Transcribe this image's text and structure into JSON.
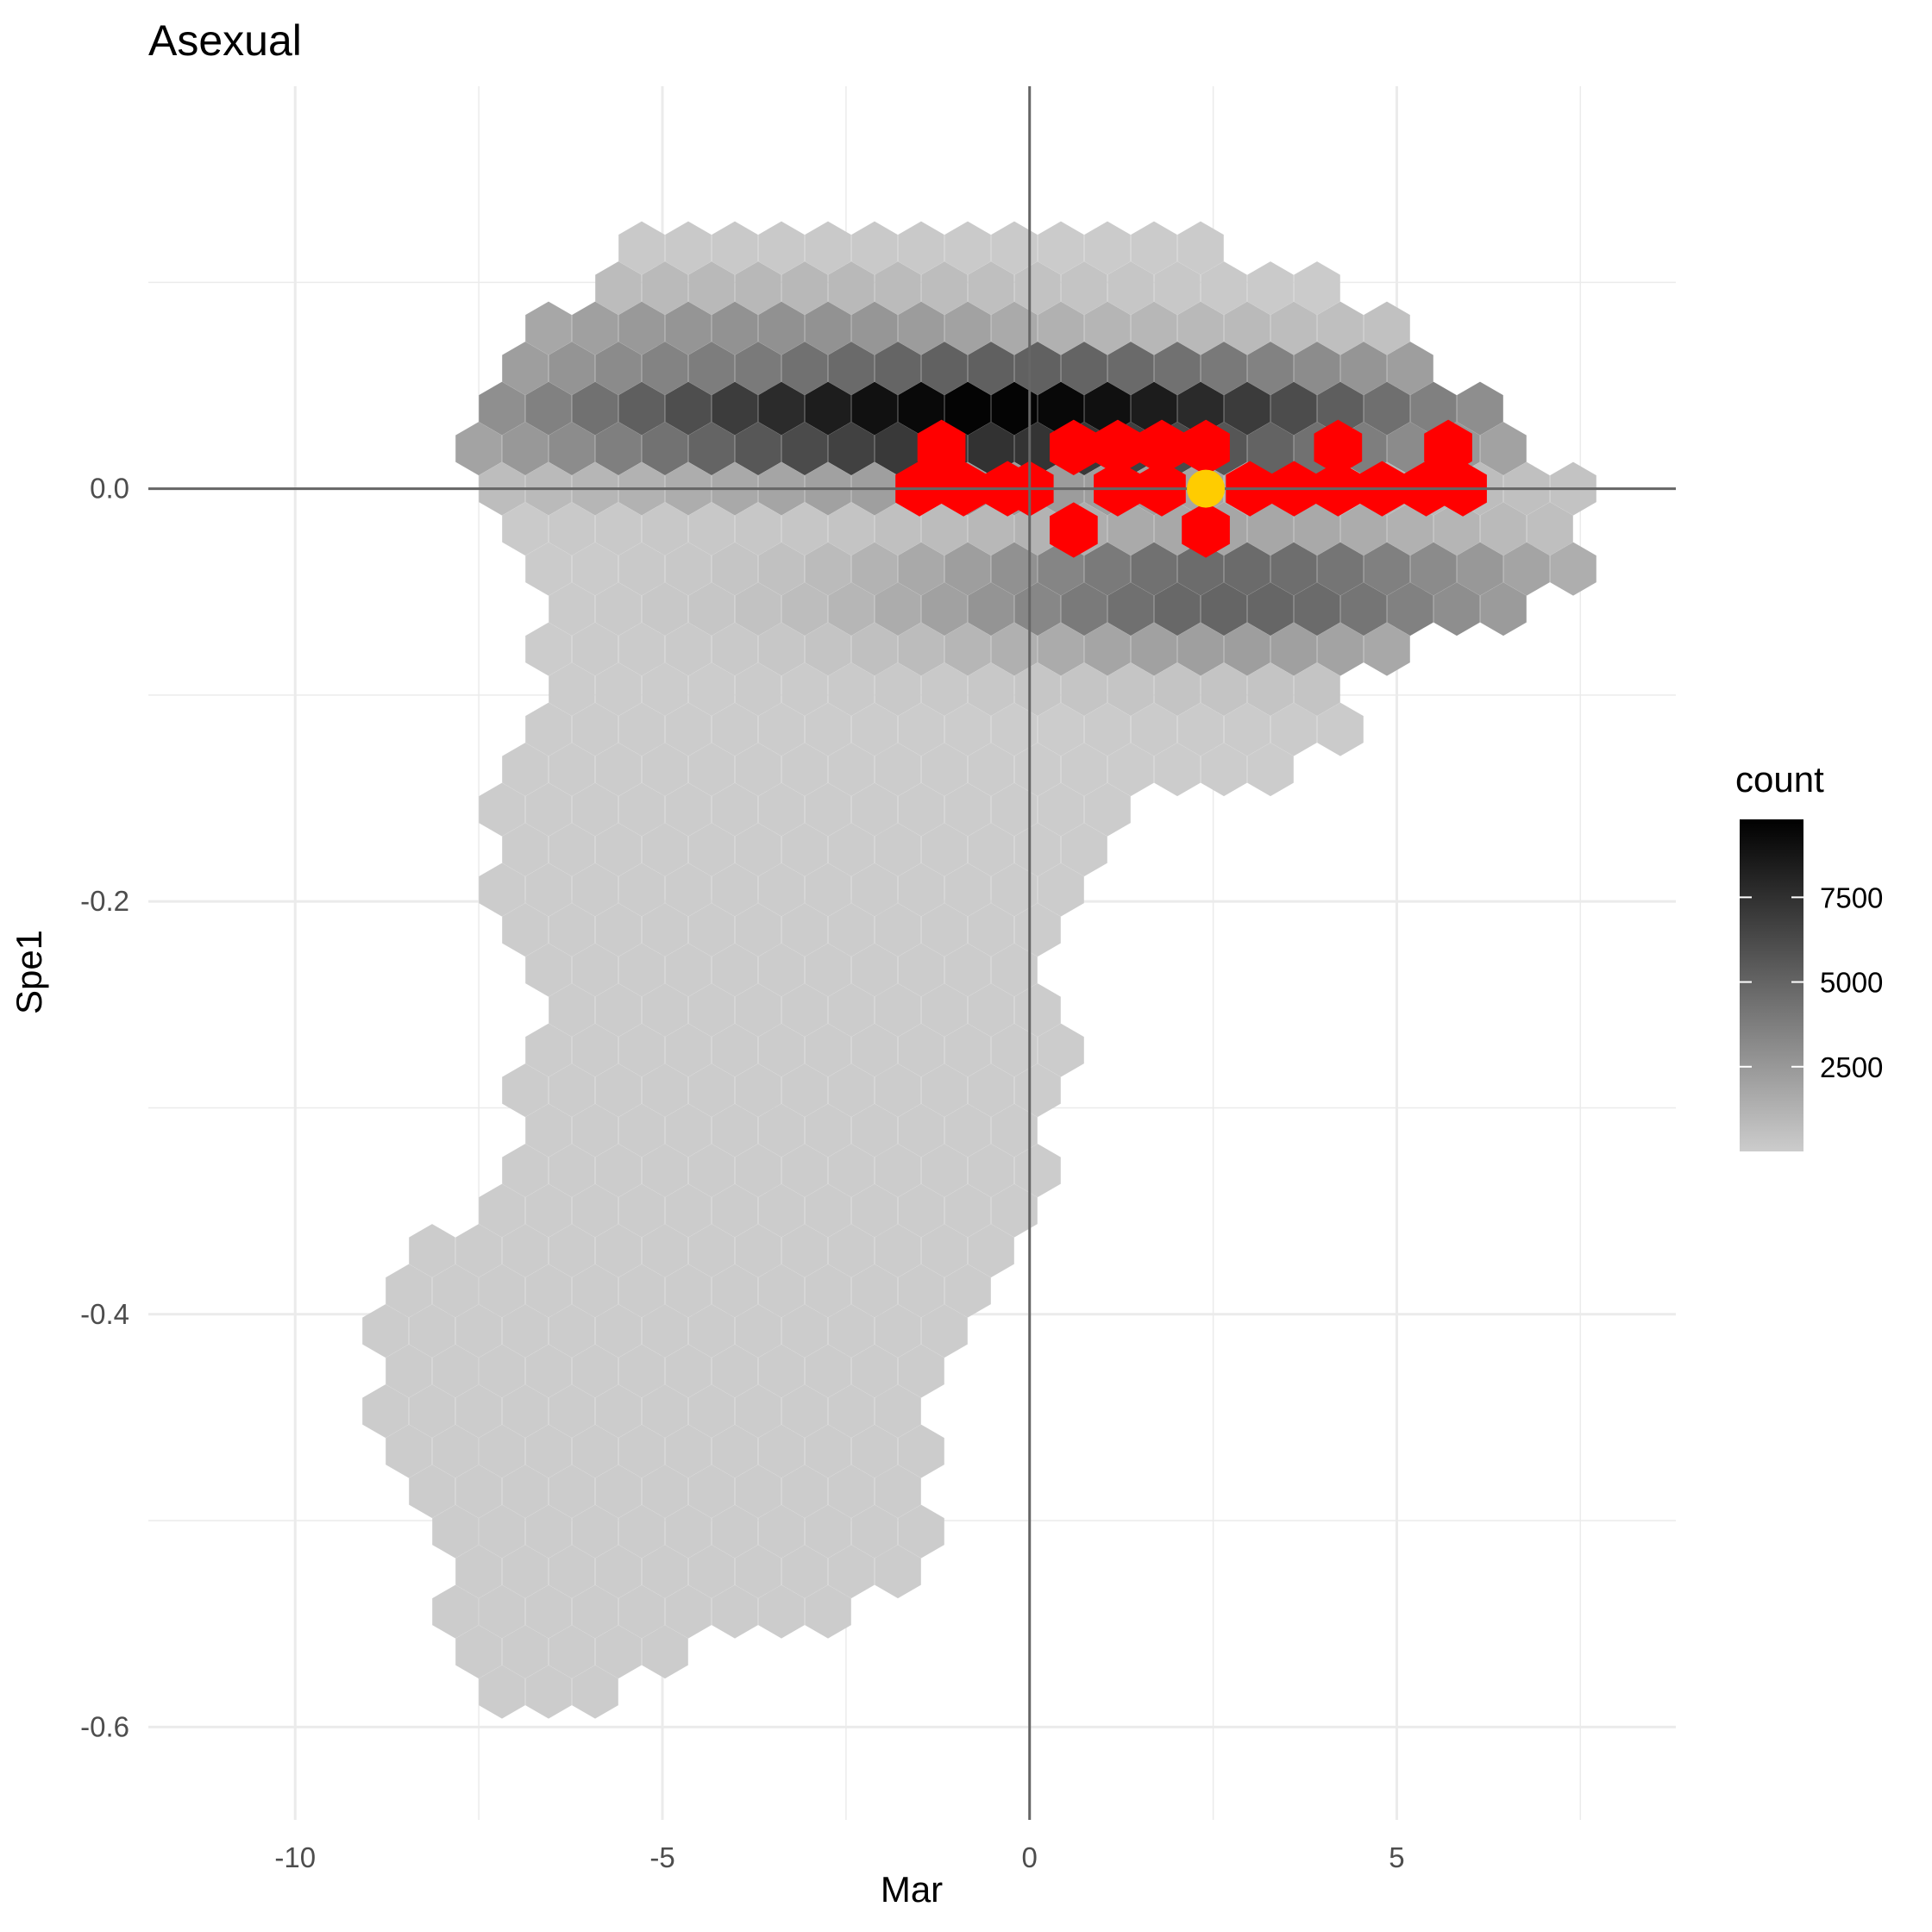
{
  "chart_data": {
    "type": "hexbin",
    "title": "Asexual",
    "xlabel": "Mar",
    "ylabel": "Spe1",
    "xlim": [
      -12,
      8.8
    ],
    "ylim": [
      -0.645,
      0.195
    ],
    "x_ticks": [
      -10,
      -5,
      0,
      5
    ],
    "x_tick_labels": [
      "-10",
      "-5",
      "0",
      "5"
    ],
    "y_ticks": [
      -0.6,
      -0.4,
      -0.2,
      0.0
    ],
    "y_tick_labels": [
      "-0.6",
      "-0.4",
      "-0.2",
      "0.0"
    ],
    "grid": true,
    "reference_lines": {
      "x": 0,
      "y": 0
    },
    "legend": {
      "title": "count",
      "placement": "right",
      "min": 0,
      "max": 9800,
      "ticks": [
        2500,
        5000,
        7500
      ],
      "tick_labels": [
        "2500",
        "5000",
        "7500"
      ],
      "low_color": "#cccccc",
      "high_color": "#000000"
    },
    "highlight_color": "#ff0000",
    "marker": {
      "x": 2.4,
      "y": 0.0,
      "color": "#ffcc00"
    },
    "density_peak": {
      "x": -0.5,
      "y": 0.035,
      "count": 9800
    },
    "highlighted_hexes": [
      {
        "x": -1.2,
        "y": 0.02
      },
      {
        "x": -1.5,
        "y": 0.0
      },
      {
        "x": -0.9,
        "y": 0.0
      },
      {
        "x": -0.3,
        "y": 0.0
      },
      {
        "x": 0.0,
        "y": 0.0
      },
      {
        "x": 0.6,
        "y": 0.02
      },
      {
        "x": 0.6,
        "y": -0.02
      },
      {
        "x": 1.2,
        "y": 0.02
      },
      {
        "x": 1.2,
        "y": 0.0
      },
      {
        "x": 1.8,
        "y": 0.02
      },
      {
        "x": 1.8,
        "y": 0.0
      },
      {
        "x": 2.4,
        "y": 0.02
      },
      {
        "x": 2.4,
        "y": -0.02
      },
      {
        "x": 3.0,
        "y": 0.0
      },
      {
        "x": 3.6,
        "y": 0.0
      },
      {
        "x": 4.2,
        "y": 0.02
      },
      {
        "x": 4.2,
        "y": 0.0
      },
      {
        "x": 4.8,
        "y": 0.0
      },
      {
        "x": 5.4,
        "y": 0.0
      },
      {
        "x": 5.7,
        "y": 0.02
      },
      {
        "x": 5.9,
        "y": 0.0
      }
    ]
  }
}
